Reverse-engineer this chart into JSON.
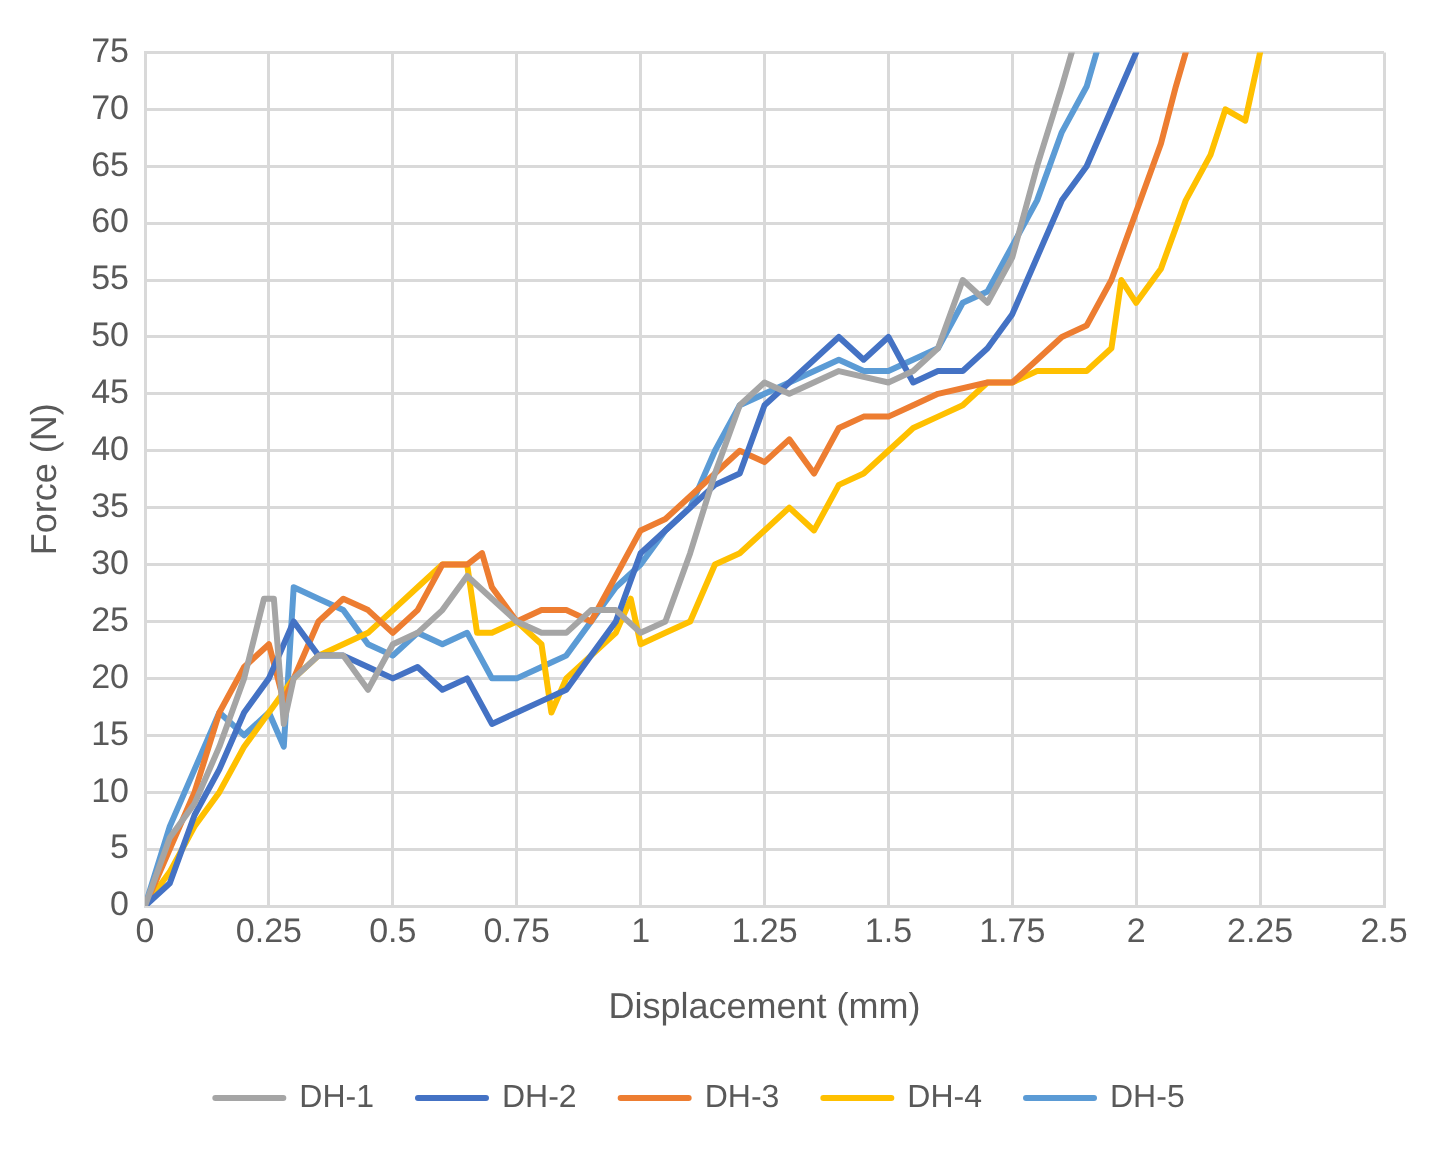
{
  "chart_data": {
    "type": "line",
    "xlabel": "Displacement (mm)",
    "ylabel": "Force (N)",
    "xlim": [
      0,
      2.5
    ],
    "xticks": [
      0,
      0.25,
      0.5,
      0.75,
      1,
      1.25,
      1.5,
      1.75,
      2,
      2.25,
      2.5
    ],
    "ylim": [
      0,
      75
    ],
    "yticks": [
      0,
      5,
      10,
      15,
      20,
      25,
      30,
      35,
      40,
      45,
      50,
      55,
      60,
      65,
      70,
      75
    ],
    "grid": true,
    "legend": "bottom",
    "marker": "none",
    "line_style": "solid",
    "series": [
      {
        "name": "DH-1",
        "color": "#a5a5a5",
        "x": [
          0,
          0.05,
          0.1,
          0.15,
          0.2,
          0.24,
          0.26,
          0.28,
          0.3,
          0.35,
          0.4,
          0.45,
          0.5,
          0.55,
          0.6,
          0.65,
          0.7,
          0.75,
          0.8,
          0.85,
          0.9,
          0.95,
          1.0,
          1.05,
          1.1,
          1.15,
          1.2,
          1.25,
          1.3,
          1.4,
          1.5,
          1.55,
          1.6,
          1.65,
          1.7,
          1.75,
          1.8,
          1.85,
          1.87
        ],
        "values": [
          0,
          6,
          9,
          14,
          20,
          27,
          27,
          16,
          20,
          22,
          22,
          19,
          23,
          24,
          26,
          29,
          27,
          25,
          24,
          24,
          26,
          26,
          24,
          25,
          31,
          38,
          44,
          46,
          45,
          47,
          46,
          47,
          49,
          55,
          53,
          57,
          65,
          72,
          75
        ]
      },
      {
        "name": "DH-2",
        "color": "#4472c4",
        "x": [
          0,
          0.05,
          0.1,
          0.15,
          0.2,
          0.25,
          0.3,
          0.35,
          0.4,
          0.45,
          0.5,
          0.55,
          0.6,
          0.65,
          0.7,
          0.75,
          0.8,
          0.85,
          0.9,
          0.95,
          1.0,
          1.05,
          1.1,
          1.15,
          1.2,
          1.25,
          1.3,
          1.35,
          1.4,
          1.45,
          1.5,
          1.55,
          1.6,
          1.65,
          1.7,
          1.75,
          1.8,
          1.85,
          1.9,
          1.95,
          2.0
        ],
        "values": [
          0,
          2,
          8,
          12,
          17,
          20,
          25,
          22,
          22,
          21,
          20,
          21,
          19,
          20,
          16,
          17,
          18,
          19,
          22,
          25,
          31,
          33,
          35,
          37,
          38,
          44,
          46,
          48,
          50,
          48,
          50,
          46,
          47,
          47,
          49,
          52,
          57,
          62,
          65,
          70,
          75
        ]
      },
      {
        "name": "DH-3",
        "color": "#ed7d31",
        "x": [
          0,
          0.05,
          0.1,
          0.15,
          0.2,
          0.25,
          0.28,
          0.3,
          0.35,
          0.4,
          0.45,
          0.5,
          0.55,
          0.6,
          0.65,
          0.68,
          0.7,
          0.75,
          0.8,
          0.85,
          0.9,
          0.95,
          1.0,
          1.05,
          1.1,
          1.15,
          1.2,
          1.25,
          1.3,
          1.35,
          1.4,
          1.45,
          1.5,
          1.55,
          1.6,
          1.7,
          1.75,
          1.8,
          1.85,
          1.9,
          1.95,
          2.0,
          2.05,
          2.08,
          2.1
        ],
        "values": [
          0,
          5,
          10,
          17,
          21,
          23,
          18,
          20,
          25,
          27,
          26,
          24,
          26,
          30,
          30,
          31,
          28,
          25,
          26,
          26,
          25,
          29,
          33,
          34,
          36,
          38,
          40,
          39,
          41,
          38,
          42,
          43,
          43,
          44,
          45,
          46,
          46,
          48,
          50,
          51,
          55,
          61,
          67,
          72,
          75
        ]
      },
      {
        "name": "DH-4",
        "color": "#ffc000",
        "x": [
          0,
          0.05,
          0.1,
          0.15,
          0.2,
          0.25,
          0.3,
          0.35,
          0.4,
          0.45,
          0.5,
          0.55,
          0.6,
          0.65,
          0.67,
          0.7,
          0.75,
          0.8,
          0.82,
          0.85,
          0.9,
          0.95,
          0.98,
          1.0,
          1.05,
          1.1,
          1.15,
          1.2,
          1.25,
          1.3,
          1.35,
          1.4,
          1.45,
          1.5,
          1.55,
          1.6,
          1.65,
          1.7,
          1.75,
          1.8,
          1.85,
          1.9,
          1.95,
          1.97,
          2.0,
          2.05,
          2.1,
          2.15,
          2.18,
          2.22,
          2.25
        ],
        "values": [
          0,
          3,
          7,
          10,
          14,
          17,
          20,
          22,
          23,
          24,
          26,
          28,
          30,
          30,
          24,
          24,
          25,
          23,
          17,
          20,
          22,
          24,
          27,
          23,
          24,
          25,
          30,
          31,
          33,
          35,
          33,
          37,
          38,
          40,
          42,
          43,
          44,
          46,
          46,
          47,
          47,
          47,
          49,
          55,
          53,
          56,
          62,
          66,
          70,
          69,
          75
        ]
      },
      {
        "name": "DH-5",
        "color": "#5b9bd5",
        "x": [
          0,
          0.05,
          0.1,
          0.15,
          0.2,
          0.25,
          0.28,
          0.3,
          0.35,
          0.4,
          0.45,
          0.5,
          0.55,
          0.6,
          0.65,
          0.7,
          0.75,
          0.8,
          0.85,
          0.9,
          0.95,
          1.0,
          1.05,
          1.1,
          1.15,
          1.2,
          1.25,
          1.3,
          1.4,
          1.45,
          1.5,
          1.6,
          1.65,
          1.7,
          1.75,
          1.8,
          1.85,
          1.9,
          1.92
        ],
        "values": [
          0,
          7,
          12,
          17,
          15,
          17,
          14,
          28,
          27,
          26,
          23,
          22,
          24,
          23,
          24,
          20,
          20,
          21,
          22,
          25,
          28,
          30,
          33,
          35,
          40,
          44,
          45,
          46,
          48,
          47,
          47,
          49,
          53,
          54,
          58,
          62,
          68,
          72,
          75
        ]
      }
    ]
  }
}
